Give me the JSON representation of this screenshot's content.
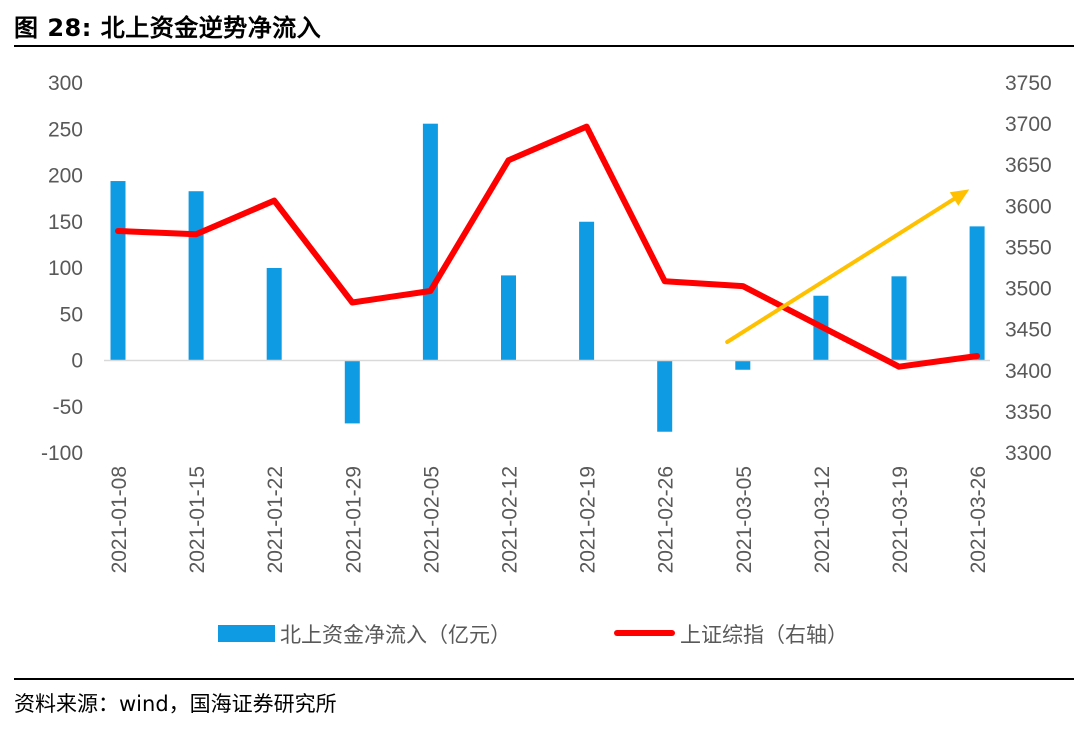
{
  "figure": {
    "title": "图 28:  北上资金逆势净流入",
    "source": "资料来源：wind，国海证券研究所"
  },
  "colors": {
    "bar": "#0f9be3",
    "line": "#ff0000",
    "arrow": "#ffc000",
    "axis_text": "#595959",
    "axis_line": "#d9d9d9"
  },
  "chart_data": {
    "type": "bar",
    "title": "",
    "categories": [
      "2021-01-08",
      "2021-01-15",
      "2021-01-22",
      "2021-01-29",
      "2021-02-05",
      "2021-02-12",
      "2021-02-19",
      "2021-02-26",
      "2021-03-05",
      "2021-03-12",
      "2021-03-19",
      "2021-03-26"
    ],
    "series": [
      {
        "name": "北上资金净流入（亿元）",
        "type": "bar",
        "axis": "left",
        "values": [
          194,
          183,
          100,
          -68,
          256,
          92,
          150,
          -77,
          -10,
          70,
          91,
          145
        ]
      },
      {
        "name": "上证综指（右轴）",
        "type": "line",
        "axis": "right",
        "values": [
          3570,
          3566,
          3607,
          3483,
          3497,
          3656,
          3697,
          3509,
          3503,
          3454,
          3405,
          3418
        ]
      }
    ],
    "y_left": {
      "min": -100,
      "max": 300,
      "ticks": [
        300,
        250,
        200,
        150,
        100,
        50,
        0,
        -50,
        -100
      ]
    },
    "y_right": {
      "min": 3300,
      "max": 3750,
      "ticks": [
        3750,
        3700,
        3650,
        3600,
        3550,
        3500,
        3450,
        3400,
        3350,
        3300
      ]
    },
    "annotations": [
      {
        "type": "arrow",
        "color": "#ffc000",
        "from": {
          "category_pos": 7.8,
          "y_left": 20
        },
        "to": {
          "category_pos": 10.9,
          "y_left": 185
        }
      }
    ],
    "legend": "bottom",
    "grid": false
  }
}
